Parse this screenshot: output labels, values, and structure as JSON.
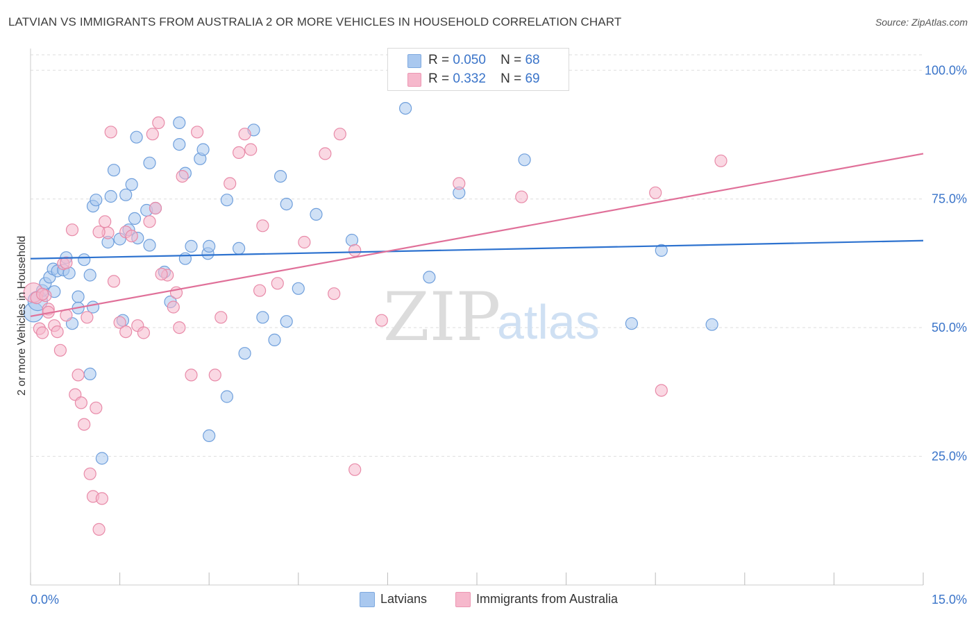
{
  "title": "LATVIAN VS IMMIGRANTS FROM AUSTRALIA 2 OR MORE VEHICLES IN HOUSEHOLD CORRELATION CHART",
  "source": "Source: ZipAtlas.com",
  "watermark": {
    "zip": "ZIP",
    "atlas": "atlas"
  },
  "legend_top": {
    "rows": [
      {
        "r_label": "R =",
        "r_value": "0.050",
        "n_label": "N =",
        "n_value": "68",
        "color": "#a9c8ef"
      },
      {
        "r_label": "R =",
        "r_value": "0.332",
        "n_label": "N =",
        "n_value": "69",
        "color": "#f6b8cc"
      }
    ]
  },
  "legend_bottom": {
    "items": [
      {
        "label": "Latvians",
        "color": "#a9c8ef"
      },
      {
        "label": "Immigrants from Australia",
        "color": "#f6b8cc"
      }
    ]
  },
  "chart_data": {
    "type": "scatter",
    "title": "LATVIAN VS IMMIGRANTS FROM AUSTRALIA 2 OR MORE VEHICLES IN HOUSEHOLD CORRELATION CHART",
    "xlabel": "",
    "ylabel": "2 or more Vehicles in Household",
    "xlim": [
      0,
      15
    ],
    "ylim": [
      0,
      103
    ],
    "x_tick_labels": [
      "0.0%",
      "15.0%"
    ],
    "y_ticks": [
      25,
      50,
      75,
      100
    ],
    "y_tick_labels": [
      "25.0%",
      "50.0%",
      "75.0%",
      "100.0%"
    ],
    "grid": true,
    "legend_position": "top-center",
    "series": [
      {
        "name": "Latvians",
        "color": "#a9c8ef",
        "stroke": "#6f9fdc",
        "trend": {
          "x": [
            0,
            15
          ],
          "y": [
            63.4,
            66.9
          ],
          "color": "#2d72cf"
        },
        "points": [
          [
            0.05,
            53.0
          ],
          [
            0.12,
            55.2
          ],
          [
            0.2,
            57.2
          ],
          [
            0.25,
            58.6
          ],
          [
            0.32,
            59.8
          ],
          [
            0.38,
            61.4
          ],
          [
            0.45,
            61.0
          ],
          [
            0.55,
            61.2
          ],
          [
            0.6,
            63.6
          ],
          [
            0.65,
            60.6
          ],
          [
            0.8,
            56.0
          ],
          [
            0.8,
            53.8
          ],
          [
            0.9,
            63.2
          ],
          [
            1.0,
            60.2
          ],
          [
            1.05,
            73.6
          ],
          [
            1.1,
            74.8
          ],
          [
            1.3,
            66.6
          ],
          [
            1.35,
            75.5
          ],
          [
            1.4,
            80.6
          ],
          [
            1.6,
            75.8
          ],
          [
            1.5,
            67.2
          ],
          [
            1.65,
            69.0
          ],
          [
            1.7,
            77.8
          ],
          [
            1.75,
            71.2
          ],
          [
            1.8,
            67.4
          ],
          [
            1.95,
            72.8
          ],
          [
            2.0,
            66.0
          ],
          [
            2.1,
            73.2
          ],
          [
            2.25,
            60.8
          ],
          [
            2.35,
            55.0
          ],
          [
            2.5,
            89.8
          ],
          [
            2.5,
            85.6
          ],
          [
            2.6,
            80.0
          ],
          [
            2.6,
            63.4
          ],
          [
            2.7,
            65.8
          ],
          [
            2.85,
            82.8
          ],
          [
            2.98,
            64.4
          ],
          [
            3.0,
            65.8
          ],
          [
            3.3,
            74.8
          ],
          [
            3.5,
            65.4
          ],
          [
            3.75,
            88.4
          ],
          [
            3.9,
            52.0
          ],
          [
            4.1,
            47.6
          ],
          [
            4.2,
            79.4
          ],
          [
            4.3,
            51.2
          ],
          [
            4.3,
            74.0
          ],
          [
            4.5,
            57.6
          ],
          [
            4.8,
            72.0
          ],
          [
            5.4,
            67.0
          ],
          [
            6.3,
            92.6
          ],
          [
            6.7,
            59.8
          ],
          [
            7.2,
            76.2
          ],
          [
            8.3,
            82.6
          ],
          [
            10.6,
            65.0
          ],
          [
            10.1,
            50.8
          ],
          [
            11.45,
            50.6
          ],
          [
            0.7,
            50.8
          ],
          [
            1.0,
            41.0
          ],
          [
            1.55,
            51.4
          ],
          [
            1.78,
            87.0
          ],
          [
            2.0,
            82.0
          ],
          [
            2.9,
            84.6
          ],
          [
            3.3,
            36.6
          ],
          [
            3.6,
            45.0
          ],
          [
            3.0,
            29.0
          ],
          [
            1.2,
            24.6
          ],
          [
            1.05,
            54.0
          ],
          [
            0.4,
            57.0
          ]
        ]
      },
      {
        "name": "Immigrants from Australia",
        "color": "#f6b8cc",
        "stroke": "#e88aa8",
        "trend": {
          "x": [
            0,
            15
          ],
          "y": [
            52.2,
            83.8
          ],
          "color": "#e07099"
        },
        "points": [
          [
            0.05,
            56.8
          ],
          [
            0.1,
            55.8
          ],
          [
            0.15,
            49.8
          ],
          [
            0.2,
            49.0
          ],
          [
            0.25,
            56.2
          ],
          [
            0.3,
            53.6
          ],
          [
            0.4,
            50.4
          ],
          [
            0.5,
            45.6
          ],
          [
            0.55,
            62.4
          ],
          [
            0.6,
            52.4
          ],
          [
            0.7,
            69.0
          ],
          [
            0.75,
            37.0
          ],
          [
            0.8,
            40.8
          ],
          [
            0.85,
            35.4
          ],
          [
            0.9,
            31.2
          ],
          [
            1.0,
            21.6
          ],
          [
            1.05,
            17.2
          ],
          [
            1.1,
            34.4
          ],
          [
            1.15,
            10.8
          ],
          [
            1.2,
            16.8
          ],
          [
            1.25,
            70.6
          ],
          [
            1.3,
            68.4
          ],
          [
            1.4,
            59.0
          ],
          [
            1.5,
            51.0
          ],
          [
            1.6,
            49.2
          ],
          [
            1.6,
            68.6
          ],
          [
            1.7,
            67.8
          ],
          [
            1.8,
            50.4
          ],
          [
            1.9,
            49.0
          ],
          [
            2.0,
            70.6
          ],
          [
            2.05,
            87.6
          ],
          [
            2.1,
            73.2
          ],
          [
            2.15,
            89.8
          ],
          [
            2.3,
            60.2
          ],
          [
            2.4,
            54.0
          ],
          [
            2.45,
            56.8
          ],
          [
            2.5,
            50.0
          ],
          [
            2.55,
            79.4
          ],
          [
            2.7,
            40.8
          ],
          [
            3.1,
            40.8
          ],
          [
            3.2,
            52.0
          ],
          [
            3.35,
            78.0
          ],
          [
            3.5,
            84.0
          ],
          [
            3.6,
            87.6
          ],
          [
            3.7,
            84.6
          ],
          [
            3.85,
            57.2
          ],
          [
            3.9,
            69.8
          ],
          [
            4.15,
            58.6
          ],
          [
            4.6,
            66.6
          ],
          [
            4.95,
            83.8
          ],
          [
            5.2,
            87.6
          ],
          [
            5.1,
            56.6
          ],
          [
            5.45,
            65.0
          ],
          [
            5.45,
            22.4
          ],
          [
            5.9,
            51.4
          ],
          [
            7.2,
            78.0
          ],
          [
            8.25,
            75.4
          ],
          [
            10.5,
            76.2
          ],
          [
            10.6,
            37.8
          ],
          [
            11.6,
            82.4
          ],
          [
            0.95,
            52.0
          ],
          [
            1.35,
            88.0
          ],
          [
            2.8,
            88.0
          ],
          [
            2.2,
            60.4
          ],
          [
            0.6,
            62.6
          ],
          [
            0.45,
            49.2
          ],
          [
            1.15,
            68.6
          ],
          [
            0.3,
            53.0
          ],
          [
            0.2,
            56.5
          ]
        ]
      }
    ]
  }
}
